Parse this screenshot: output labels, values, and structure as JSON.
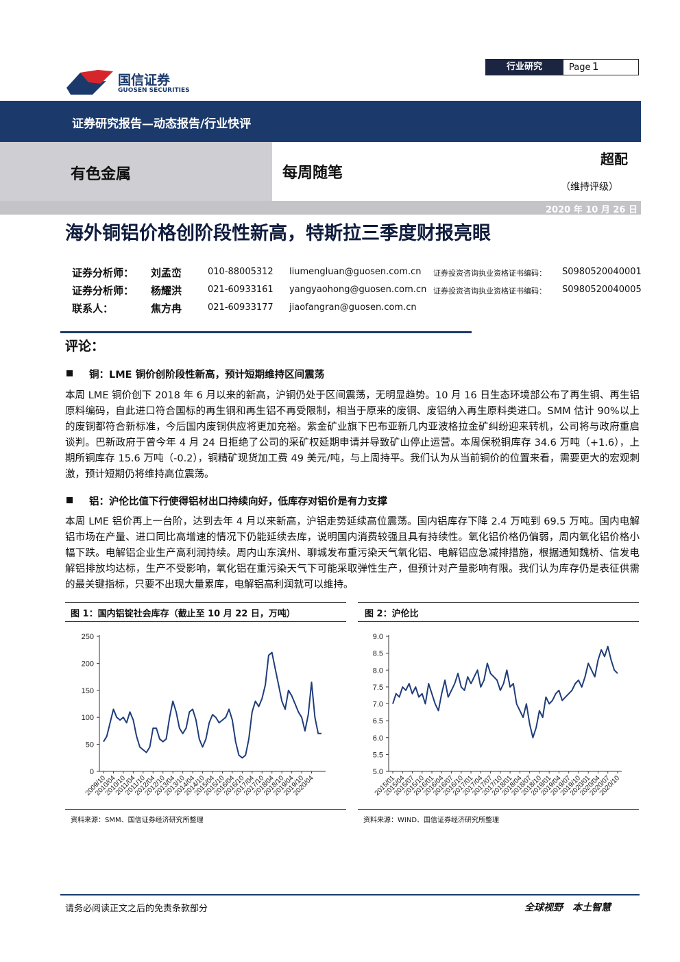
{
  "header": {
    "logo_cn": "国信证券",
    "logo_en": "GUOSEN SECURITIES",
    "section": "行业研究",
    "page_label": "Page",
    "page_number": "1",
    "banner": "证券研究报告—动态报告/行业快评",
    "industry": "有色金属",
    "column": "每周随笔",
    "rating": "超配",
    "rating_note": "（维持评级）",
    "date": "2020 年 10 月 26 日"
  },
  "title": "海外铜铝价格创阶段性新高，特斯拉三季度财报亮眼",
  "analysts": [
    [
      "证券分析师：",
      "刘孟峦",
      "010-88005312",
      "liumengluan@guosen.com.cn",
      "证券投资咨询执业资格证书编码：",
      "S0980520040001"
    ],
    [
      "证券分析师：",
      "杨耀洪",
      "021-60933161",
      "yangyaohong@guosen.com.cn",
      "证券投资咨询执业资格证书编码：",
      "S0980520040005"
    ],
    [
      "联系人：",
      "焦方冉",
      "021-60933177",
      "jiaofangran@guosen.com.cn"
    ]
  ],
  "comment_heading": "评论：",
  "sections": [
    {
      "heading": "铜：LME 铜价创阶段性新高，预计短期维持区间震荡",
      "text": "本周 LME 铜价创下 2018 年 6 月以来的新高，沪铜仍处于区间震荡，无明显趋势。10 月 16 日生态环境部公布了再生铜、再生铝原料编码，自此进口符合国标的再生铜和再生铝不再受限制，相当于原来的废铜、废铝纳入再生原料类进口。SMM 估计 90%以上的废铜都符合新标准，今后国内废铜供应将更加充裕。紫金矿业旗下巴布亚新几内亚波格拉金矿纠纷迎来转机，公司将与政府重启谈判。巴新政府于曾今年 4 月 24 日拒绝了公司的采矿权延期申请并导致矿山停止运营。本周保税铜库存 34.6 万吨（+1.6），上期所铜库存 15.6 万吨（-0.2），铜精矿现货加工费 49 美元/吨，与上周持平。我们认为从当前铜价的位置来看，需要更大的宏观刺激，预计短期仍将维持高位震荡。"
    },
    {
      "heading": "铝：沪伦比值下行使得铝材出口持续向好，低库存对铝价是有力支撑",
      "text": "本周 LME 铝价再上一台阶，达到去年 4 月以来新高，沪铝走势延续高位震荡。国内铝库存下降 2.4 万吨到 69.5 万吨。国内电解铝市场在产量、进口同比高增速的情况下仍能延续去库，说明国内消费较强且具有持续性。氧化铝价格仍偏弱，周内氧化铝价格小幅下跌。电解铝企业生产高利润持续。周内山东滨州、聊城发布重污染天气氧化铝、电解铝应急减排措施，根据通知魏桥、信发电解铝排放均达标，生产不受影响，氧化铝在重污染天气下可能采取弹性生产，但预计对产量影响有限。我们认为库存仍是表征供需的最关键指标，只要不出现大量累库，电解铝高利润就可以维持。"
    }
  ],
  "chart_data": [
    {
      "type": "line",
      "title": "图 1：国内铝锭社会库存（截止至 10 月 22 日，万吨）",
      "source": "资料来源：SMM、国信证券经济研究所整理",
      "color": "#1f3d7a",
      "categories": [
        "2009/10",
        null,
        null,
        "2010/04",
        null,
        null,
        "2010/10",
        null,
        null,
        "2011/04",
        null,
        null,
        "2011/10",
        null,
        null,
        "2012/04",
        null,
        null,
        "2012/10",
        null,
        null,
        "2013/04",
        null,
        null,
        "2013/10",
        null,
        null,
        "2014/04",
        null,
        null,
        "2014/10",
        null,
        null,
        "2015/04",
        null,
        null,
        "2015/10",
        null,
        null,
        "2016/04",
        null,
        null,
        "2016/10",
        null,
        null,
        "2017/04",
        null,
        null,
        "2017/10",
        null,
        null,
        "2018/04",
        null,
        null,
        "2018/10",
        null,
        null,
        "2019/04",
        null,
        null,
        "2019/10",
        null,
        null,
        "2020/04",
        null,
        null,
        null
      ],
      "values": [
        55,
        65,
        90,
        115,
        100,
        95,
        100,
        90,
        110,
        95,
        65,
        45,
        40,
        35,
        45,
        80,
        80,
        60,
        55,
        60,
        100,
        130,
        110,
        80,
        70,
        80,
        110,
        115,
        95,
        60,
        45,
        60,
        90,
        105,
        100,
        90,
        95,
        100,
        115,
        95,
        55,
        30,
        25,
        30,
        60,
        110,
        130,
        120,
        135,
        160,
        215,
        220,
        190,
        160,
        130,
        115,
        150,
        140,
        125,
        110,
        100,
        75,
        105,
        165,
        100,
        70,
        70
      ],
      "ylim": [
        0,
        250
      ],
      "yticks": [
        0,
        50,
        100,
        150,
        200,
        250
      ]
    },
    {
      "type": "line",
      "title": "图 2：沪伦比",
      "source": "资料来源：WIND、国信证券经济研究所整理",
      "color": "#1f3d7a",
      "categories": [
        "2015/01",
        null,
        null,
        "2015/04",
        null,
        null,
        "2015/07",
        null,
        null,
        "2015/10",
        null,
        null,
        "2016/01",
        null,
        null,
        "2016/04",
        null,
        null,
        "2016/07",
        null,
        null,
        "2016/10",
        null,
        null,
        "2017/01",
        null,
        null,
        "2017/04",
        null,
        null,
        "2017/07",
        null,
        null,
        "2017/10",
        null,
        null,
        "2018/01",
        null,
        null,
        "2018/04",
        null,
        null,
        "2018/07",
        null,
        null,
        "2018/10",
        null,
        null,
        "2019/01",
        null,
        null,
        "2019/04",
        null,
        null,
        "2019/07",
        null,
        null,
        "2019/10",
        null,
        null,
        "2020/01",
        null,
        null,
        "2020/04",
        null,
        null,
        "2020/07",
        null,
        null,
        "2020/10"
      ],
      "values": [
        7.0,
        7.3,
        7.2,
        7.5,
        7.4,
        7.6,
        7.3,
        7.5,
        7.2,
        7.3,
        7.0,
        7.6,
        7.3,
        7.0,
        6.8,
        7.3,
        7.7,
        7.2,
        7.4,
        7.6,
        7.9,
        7.5,
        7.4,
        7.8,
        7.6,
        7.8,
        8.0,
        7.5,
        7.7,
        8.2,
        7.9,
        7.8,
        7.7,
        7.4,
        7.6,
        8.0,
        7.5,
        7.6,
        7.0,
        6.8,
        6.6,
        7.0,
        6.4,
        6.0,
        6.3,
        6.8,
        6.6,
        7.2,
        7.0,
        7.1,
        7.3,
        7.4,
        7.1,
        7.2,
        7.3,
        7.4,
        7.6,
        7.7,
        7.5,
        7.8,
        8.2,
        8.0,
        7.8,
        8.3,
        8.6,
        8.4,
        8.7,
        8.3,
        8.0,
        7.9
      ],
      "ylim": [
        5,
        9
      ],
      "yticks": [
        {
          "value": 5,
          "label": "5.0"
        },
        {
          "value": 5.5,
          "label": "5.5"
        },
        {
          "value": 6,
          "label": "6.0"
        },
        {
          "value": 6.5,
          "label": "6.5"
        },
        {
          "value": 7,
          "label": "7.0"
        },
        {
          "value": 7.5,
          "label": "7.5"
        },
        {
          "value": 8,
          "label": "8.0"
        },
        {
          "value": 8.5,
          "label": "8.5"
        },
        {
          "value": 9,
          "label": "9.0"
        }
      ]
    }
  ],
  "footer": {
    "disclaimer": "请务必阅读正文之后的免责条款部分",
    "slogan": "全球视野　本土智慧"
  }
}
